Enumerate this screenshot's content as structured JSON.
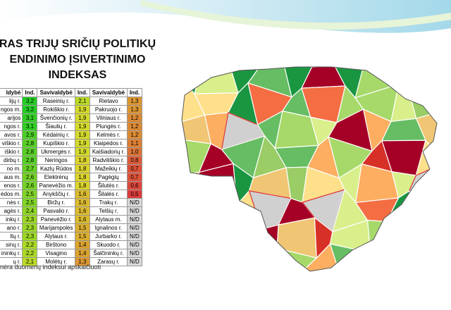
{
  "title": {
    "lines": [
      "RAS TRIJŲ SRIČIŲ POLITIKŲ",
      "ENDINIMO ĮSIVERTINIMO",
      "INDEKSAS"
    ]
  },
  "table": {
    "header": [
      "ldybė",
      "Ind.",
      "Savivaldybė",
      "Ind.",
      "Savivaldybė",
      "Ind."
    ],
    "rows": [
      [
        "lijų r.",
        "3,2",
        "Raseinių r.",
        "2,1",
        "Rietavo",
        "1,3"
      ],
      [
        "ngos m.",
        "3,2",
        "Rokiškio r.",
        "1,9",
        "Pakruojo r.",
        "1,3"
      ],
      [
        "arijos",
        "3,1",
        "Švenčionių r.",
        "1,9",
        "Vilniaus r.",
        "1,2"
      ],
      [
        "ngos r.",
        "3,1",
        "Šiaulių r.",
        "1,9",
        "Plungės r.",
        "1,2"
      ],
      [
        "avos r.",
        "2,9",
        "Kėdainių r.",
        "1,9",
        "Kelmės r.",
        "1,2"
      ],
      [
        "viškio r.",
        "2,8",
        "Kupiškio r.",
        "1,9",
        "Klaipėdos r.",
        "1,1"
      ],
      [
        "iškio r.",
        "2,8",
        "Ukmergės r.",
        "1,9",
        "Kaišiadorių r.",
        "1,0"
      ],
      [
        "dirbų r.",
        "2,8",
        "Neringos",
        "1,8",
        "Radviliškio r.",
        "0,8"
      ],
      [
        "no m.",
        "2,7",
        "Kazlų Rūdos",
        "1,8",
        "Mažeikių r.",
        "0,7"
      ],
      [
        "aus m.",
        "2,6",
        "Elektrėnų",
        "1,8",
        "Pagėgių",
        "0,7"
      ],
      [
        "enos r.",
        "2,6",
        "Panevėžio m.",
        "1,8",
        "Šilutės r.",
        "0,6"
      ],
      [
        "ėdos m.",
        "2,5",
        "Anykščių r.",
        "1,6",
        "Šilalės r.",
        "0,5"
      ],
      [
        "nės r.",
        "2,5",
        "Biržų r.",
        "1,6",
        "Trakų r.",
        "N/D"
      ],
      [
        "agės r.",
        "2,4",
        "Pasvalio r.",
        "1,6",
        "Telšių r.",
        "N/D"
      ],
      [
        "inkų r.",
        "2,3",
        "Panevėžio r.",
        "1,6",
        "Alytaus m.",
        "N/D"
      ],
      [
        "ano r.",
        "2,3",
        "Marijampolės",
        "1,5",
        "Ignalinos r.",
        "N/D"
      ],
      [
        "ltų r.",
        "2,3",
        "Alytaus r.",
        "1,5",
        "Jurbarko r.",
        "N/D"
      ],
      [
        "sinų r.",
        "2,2",
        "Birštono",
        "1,4",
        "Skuodo r.",
        "N/D"
      ],
      [
        "ininkų r.",
        "2,2",
        "Visagino",
        "1,4",
        "Šalčininkų r.",
        "N/D"
      ],
      [
        "ų r.",
        "2,1",
        "Molėtų r.",
        "1,3",
        "Zarasų r.",
        "N/D"
      ]
    ]
  },
  "footnote": "nėra duomenų indeksui apskaičiuoti"
}
